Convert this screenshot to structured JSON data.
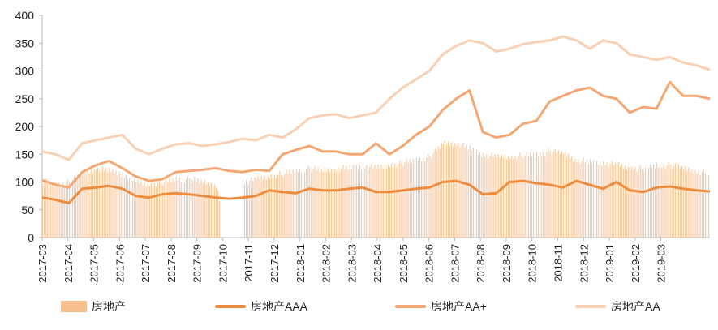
{
  "chart_data": {
    "type": "bar+line",
    "title": "",
    "xlabel": "",
    "ylabel": "",
    "ylim": [
      0,
      400
    ],
    "yticks": [
      "0",
      "50",
      "100",
      "150",
      "200",
      "250",
      "300",
      "350",
      "400"
    ],
    "xticks": [
      "2017-03",
      "2017-04",
      "2017-05",
      "2017-06",
      "2017-07",
      "2017-08",
      "2017-09",
      "2017-10",
      "2017-11",
      "2017-12",
      "2018-01",
      "2018-02",
      "2018-03",
      "2018-04",
      "2018-05",
      "2018-06",
      "2018-07",
      "2018-08",
      "2018-09",
      "2018-10",
      "2018-11",
      "2018-12",
      "2019-01",
      "2019-02",
      "2019-03"
    ],
    "x_note": "values sampled twice per month from 2017-03 to end of 2019-03",
    "legend_position": "bottom",
    "series": [
      {
        "name": "房地产",
        "type": "bar",
        "color": "#F8C08F",
        "values": [
          100,
          95,
          100,
          115,
          125,
          120,
          115,
          100,
          95,
          100,
          105,
          105,
          100,
          95,
          0,
          100,
          105,
          110,
          115,
          120,
          125,
          120,
          125,
          125,
          130,
          125,
          130,
          135,
          140,
          145,
          170,
          170,
          160,
          150,
          145,
          145,
          148,
          150,
          155,
          152,
          140,
          135,
          135,
          130,
          125,
          125,
          130,
          130,
          125,
          120,
          115
        ]
      },
      {
        "name": "房地产AAA",
        "type": "line",
        "color": "#ED8B3E",
        "values": [
          72,
          68,
          62,
          88,
          90,
          93,
          88,
          75,
          72,
          78,
          80,
          78,
          75,
          72,
          70,
          72,
          75,
          85,
          82,
          80,
          88,
          85,
          85,
          88,
          90,
          82,
          82,
          85,
          88,
          90,
          100,
          102,
          95,
          78,
          80,
          100,
          102,
          98,
          95,
          90,
          102,
          95,
          88,
          100,
          85,
          82,
          90,
          92,
          88,
          85,
          83
        ]
      },
      {
        "name": "房地产AA+",
        "type": "line",
        "color": "#F4A772",
        "values": [
          103,
          95,
          90,
          118,
          130,
          138,
          125,
          110,
          102,
          105,
          118,
          120,
          122,
          125,
          120,
          118,
          122,
          120,
          150,
          158,
          165,
          155,
          155,
          150,
          150,
          170,
          150,
          165,
          185,
          200,
          230,
          250,
          265,
          190,
          180,
          185,
          205,
          210,
          245,
          255,
          265,
          270,
          255,
          250,
          225,
          235,
          232,
          280,
          255,
          255,
          250
        ]
      },
      {
        "name": "房地产AA",
        "type": "line",
        "color": "#FAD0B4",
        "values": [
          155,
          150,
          140,
          170,
          175,
          180,
          185,
          160,
          150,
          160,
          168,
          170,
          165,
          168,
          172,
          178,
          175,
          185,
          180,
          195,
          215,
          220,
          222,
          215,
          220,
          225,
          250,
          270,
          285,
          300,
          330,
          345,
          355,
          350,
          335,
          340,
          348,
          352,
          355,
          362,
          355,
          340,
          355,
          350,
          330,
          325,
          320,
          325,
          315,
          310,
          302
        ]
      }
    ]
  }
}
